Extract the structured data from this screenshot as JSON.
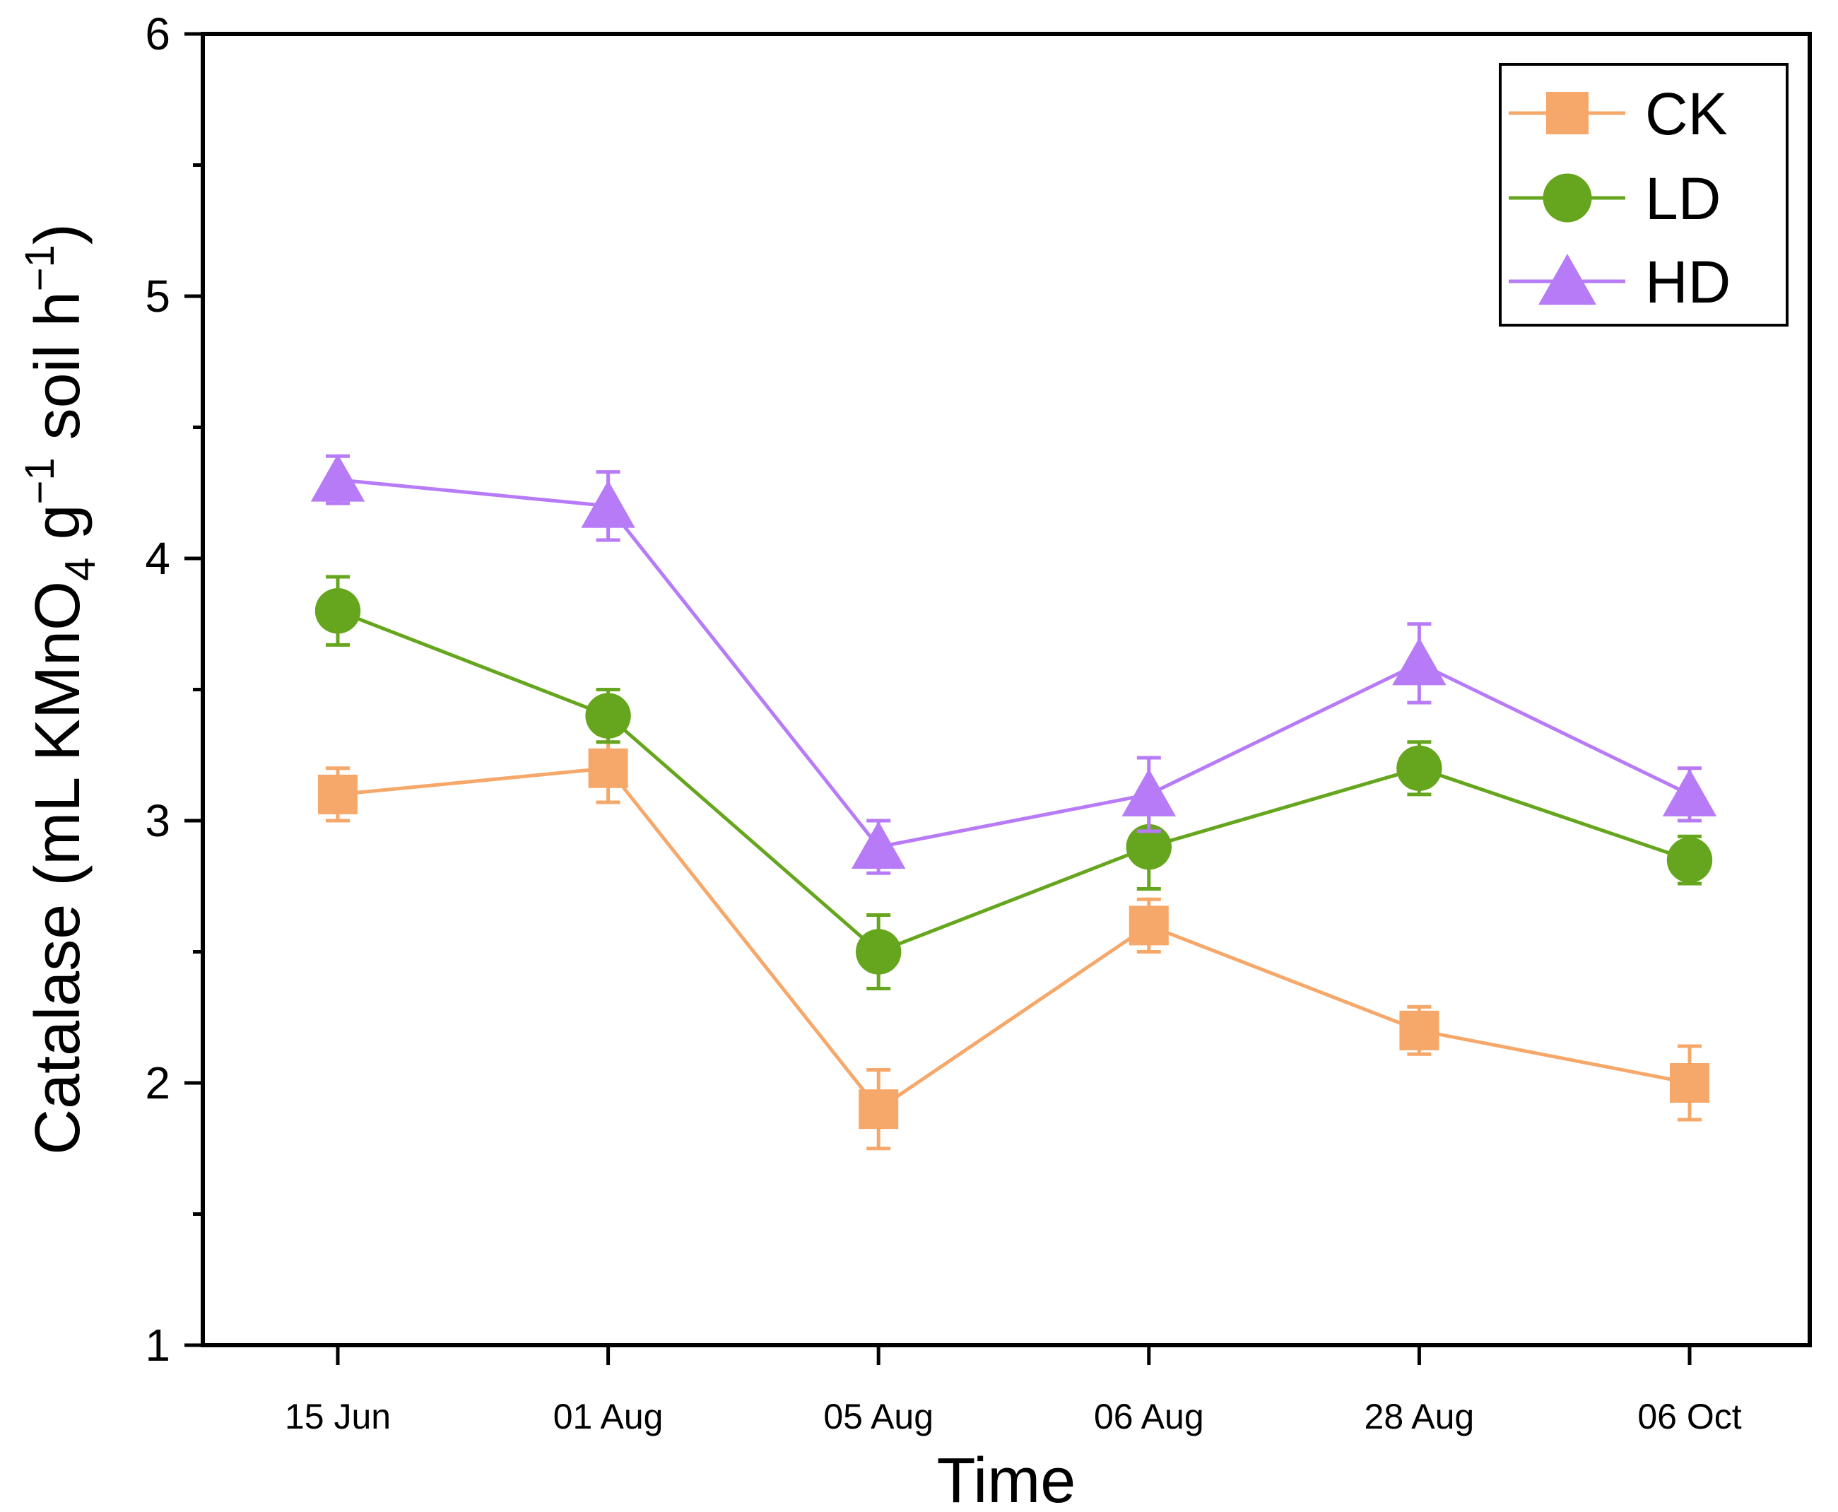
{
  "chart_data": {
    "type": "line",
    "title": "",
    "xlabel": "Time",
    "ylabel": {
      "prefix": "Catalase (mL KMnO",
      "sub": "4",
      "mid1": " g",
      "sup1": "−1",
      "mid2": " soil h",
      "sup2": "−1",
      "suffix": ")"
    },
    "categories": [
      "15 Jun",
      "01 Aug",
      "05 Aug",
      "06 Aug",
      "28 Aug",
      "06 Oct"
    ],
    "ylim": [
      1,
      6
    ],
    "yticks": [
      1,
      2,
      3,
      4,
      5,
      6
    ],
    "yminor": [
      1.5,
      2.5,
      3.5,
      4.5,
      5.5
    ],
    "legend_position": "top-right",
    "grid": false,
    "series": [
      {
        "name": "CK",
        "marker": "square",
        "color": "#F5A86A",
        "values": [
          3.1,
          3.2,
          1.9,
          2.6,
          2.2,
          2.0
        ],
        "errors": [
          0.1,
          0.13,
          0.15,
          0.1,
          0.09,
          0.14
        ]
      },
      {
        "name": "LD",
        "marker": "circle",
        "color": "#66A61E",
        "values": [
          3.8,
          3.4,
          2.5,
          2.9,
          3.2,
          2.85
        ],
        "errors": [
          0.13,
          0.1,
          0.14,
          0.16,
          0.1,
          0.09
        ]
      },
      {
        "name": "HD",
        "marker": "triangle",
        "color": "#B77BF7",
        "values": [
          4.3,
          4.2,
          2.9,
          3.1,
          3.6,
          3.1
        ],
        "errors": [
          0.09,
          0.13,
          0.1,
          0.14,
          0.15,
          0.1
        ]
      }
    ]
  }
}
